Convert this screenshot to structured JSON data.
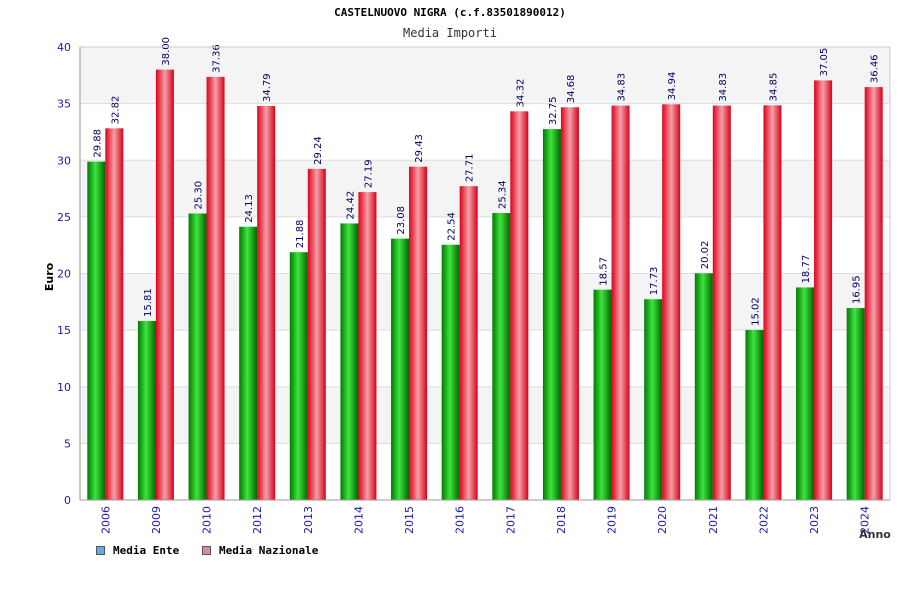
{
  "chart_data": {
    "type": "bar",
    "title": "CASTELNUOVO NIGRA (c.f.83501890012)",
    "subtitle": "Media Importi",
    "ylabel": "Euro",
    "xlabel": "Anno",
    "ylim": [
      0,
      40
    ],
    "yticks": [
      0,
      5,
      10,
      15,
      20,
      25,
      30,
      35,
      40
    ],
    "grid": true,
    "legend_position": "bottom-left",
    "categories": [
      "2006",
      "2009",
      "2010",
      "2012",
      "2013",
      "2014",
      "2015",
      "2016",
      "2017",
      "2018",
      "2019",
      "2020",
      "2021",
      "2022",
      "2023",
      "2024"
    ],
    "series": [
      {
        "name": "Media Ente",
        "color": "#00b000",
        "legend_color": "#66aaee",
        "values": [
          29.88,
          15.81,
          25.3,
          24.13,
          21.88,
          24.42,
          23.08,
          22.54,
          25.34,
          32.75,
          18.57,
          17.73,
          20.02,
          15.02,
          18.77,
          16.95
        ],
        "labels": [
          "29.88",
          "15.81",
          "25.30",
          "24.13",
          "21.88",
          "24.42",
          "23.08",
          "22.54",
          "25.34",
          "32.75",
          "18.57",
          "17.73",
          "20.02",
          "15.02",
          "18.77",
          "16.95"
        ]
      },
      {
        "name": "Media Nazionale",
        "color": "#e8001c",
        "legend_color": "#dd88aa",
        "values": [
          32.82,
          38.0,
          37.36,
          34.79,
          29.24,
          27.19,
          29.43,
          27.71,
          34.32,
          34.68,
          34.83,
          34.94,
          34.83,
          34.85,
          37.05,
          36.46
        ],
        "labels": [
          "32.82",
          "38.00",
          "37.36",
          "34.79",
          "29.24",
          "27.19",
          "29.43",
          "27.71",
          "34.32",
          "34.68",
          "34.83",
          "34.94",
          "34.83",
          "34.85",
          "37.05",
          "36.46"
        ]
      }
    ]
  }
}
